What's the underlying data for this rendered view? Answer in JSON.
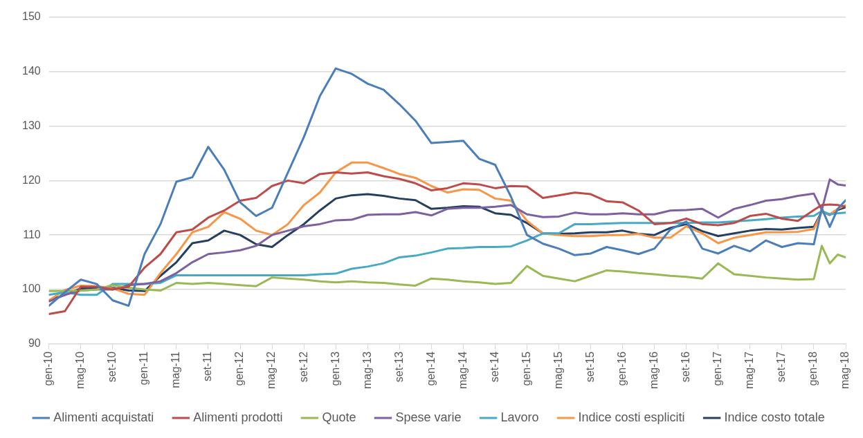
{
  "chart_data": {
    "type": "line",
    "x": [
      "2010-01",
      "2010-03",
      "2010-05",
      "2010-07",
      "2010-09",
      "2010-11",
      "2011-01",
      "2011-03",
      "2011-05",
      "2011-07",
      "2011-09",
      "2011-11",
      "2012-01",
      "2012-03",
      "2012-05",
      "2012-07",
      "2012-09",
      "2012-11",
      "2013-01",
      "2013-03",
      "2013-05",
      "2013-07",
      "2013-09",
      "2013-11",
      "2014-01",
      "2014-03",
      "2014-05",
      "2014-07",
      "2014-09",
      "2014-11",
      "2015-01",
      "2015-03",
      "2015-05",
      "2015-07",
      "2015-09",
      "2015-11",
      "2016-01",
      "2016-03",
      "2016-05",
      "2016-07",
      "2016-09",
      "2016-11",
      "2017-01",
      "2017-03",
      "2017-05",
      "2017-07",
      "2017-09",
      "2017-11",
      "2018-01",
      "2018-02",
      "2018-03",
      "2018-04",
      "2018-05"
    ],
    "xlim": [
      "2010-01",
      "2018-05"
    ],
    "xticks": [
      {
        "value": "2010-01",
        "label": "gen-10"
      },
      {
        "value": "2010-05",
        "label": "mag-10"
      },
      {
        "value": "2010-09",
        "label": "set-10"
      },
      {
        "value": "2011-01",
        "label": "gen-11"
      },
      {
        "value": "2011-05",
        "label": "mag-11"
      },
      {
        "value": "2011-09",
        "label": "set-11"
      },
      {
        "value": "2012-01",
        "label": "gen-12"
      },
      {
        "value": "2012-05",
        "label": "mag-12"
      },
      {
        "value": "2012-09",
        "label": "set-12"
      },
      {
        "value": "2013-01",
        "label": "gen-13"
      },
      {
        "value": "2013-05",
        "label": "mag-13"
      },
      {
        "value": "2013-09",
        "label": "set-13"
      },
      {
        "value": "2014-01",
        "label": "gen-14"
      },
      {
        "value": "2014-05",
        "label": "mag-14"
      },
      {
        "value": "2014-09",
        "label": "set-14"
      },
      {
        "value": "2015-01",
        "label": "gen-15"
      },
      {
        "value": "2015-05",
        "label": "mag-15"
      },
      {
        "value": "2015-09",
        "label": "set-15"
      },
      {
        "value": "2016-01",
        "label": "gen-16"
      },
      {
        "value": "2016-05",
        "label": "mag-16"
      },
      {
        "value": "2016-09",
        "label": "set-16"
      },
      {
        "value": "2017-01",
        "label": "gen-17"
      },
      {
        "value": "2017-05",
        "label": "mag-17"
      },
      {
        "value": "2017-09",
        "label": "set-17"
      },
      {
        "value": "2018-01",
        "label": "gen-18"
      },
      {
        "value": "2018-05",
        "label": "mag-18"
      }
    ],
    "ylim": [
      90,
      150
    ],
    "yticks": [
      90,
      100,
      110,
      120,
      130,
      140,
      150
    ],
    "grid": "y",
    "legend": "bottom",
    "marker": "none",
    "line_style": "solid",
    "series": [
      {
        "name": "Alimenti acquistati",
        "color": "#4a7ebb",
        "values": [
          97,
          99.5,
          101.8,
          101,
          98,
          97,
          106.5,
          112,
          119.8,
          120.6,
          126.2,
          122,
          116,
          113.5,
          115,
          121.5,
          128,
          135.5,
          140.6,
          139.6,
          137.8,
          136.7,
          134,
          131,
          126.9,
          127.1,
          127.3,
          124,
          122.9,
          117,
          110,
          108.4,
          107.5,
          106.3,
          106.6,
          107.8,
          107.2,
          106.5,
          107.5,
          111,
          112.5,
          107.5,
          106.6,
          108,
          107,
          109,
          107.8,
          108.5,
          108.3,
          114.9,
          111.5,
          114.8,
          116.4
        ]
      },
      {
        "name": "Alimenti prodotti",
        "color": "#be4b48",
        "values": [
          95.5,
          96,
          100.5,
          100.5,
          100,
          100.5,
          104,
          106.5,
          110.5,
          111,
          113.2,
          114.5,
          116.3,
          116.8,
          119,
          120,
          119.5,
          121.2,
          121.5,
          121.3,
          121.5,
          120.8,
          120.3,
          119.5,
          118.2,
          118.6,
          119.5,
          119.3,
          118.6,
          119,
          118.9,
          116.8,
          117.3,
          117.8,
          117.5,
          116.2,
          116,
          114.5,
          112,
          112.2,
          113,
          112,
          111.8,
          112.2,
          113.5,
          113.9,
          113,
          112.6,
          114.6,
          115.5,
          115.6,
          115.5,
          115.2
        ]
      },
      {
        "name": "Quote",
        "color": "#98b954",
        "values": [
          99.7,
          99.7,
          99.8,
          100,
          100.8,
          100.3,
          100,
          99.8,
          101.2,
          101,
          101.2,
          101,
          100.8,
          100.6,
          102.2,
          102,
          101.8,
          101.5,
          101.3,
          101.5,
          101.3,
          101.2,
          100.9,
          100.7,
          102,
          101.8,
          101.5,
          101.3,
          101,
          101.2,
          104.3,
          102.5,
          102,
          101.5,
          102.5,
          103.5,
          103.3,
          103,
          102.8,
          102.5,
          102.3,
          102,
          104.8,
          102.8,
          102.5,
          102.2,
          102,
          101.8,
          101.9,
          108,
          104.8,
          106.4,
          105.9
        ]
      },
      {
        "name": "Spese varie",
        "color": "#7d60a0",
        "values": [
          97.8,
          99,
          99.8,
          100,
          100,
          100.8,
          101,
          101.5,
          103,
          105,
          106.5,
          106.8,
          107.2,
          108,
          110,
          110.8,
          111.6,
          112,
          112.7,
          112.8,
          113.7,
          113.8,
          113.8,
          114.2,
          113.6,
          114.8,
          115,
          115,
          115.2,
          115.5,
          113.8,
          113.3,
          113.4,
          114.1,
          113.8,
          113.8,
          114,
          113.8,
          113.8,
          114.5,
          114.6,
          114.8,
          113.2,
          114.8,
          115.5,
          116.3,
          116.6,
          117.2,
          117.6,
          114.6,
          120.2,
          119.3,
          119.1
        ]
      },
      {
        "name": "Lavoro",
        "color": "#46aac5",
        "values": [
          99,
          99.5,
          99,
          99,
          101,
          101,
          101,
          101.2,
          102.6,
          102.6,
          102.6,
          102.6,
          102.6,
          102.6,
          102.6,
          102.6,
          102.6,
          102.8,
          102.9,
          103.8,
          104.2,
          104.8,
          105.9,
          106.2,
          106.8,
          107.5,
          107.6,
          107.8,
          107.8,
          107.9,
          109,
          110.3,
          110.3,
          112,
          112,
          112.1,
          112.2,
          112.2,
          112.2,
          112.2,
          112.2,
          112.3,
          112.3,
          112.5,
          112.7,
          112.9,
          113.2,
          113.4,
          113.5,
          114.4,
          113.8,
          114,
          114.1
        ]
      },
      {
        "name": "Indice costi espliciti",
        "color": "#f79646",
        "values": [
          98,
          99.9,
          100.7,
          100.6,
          100.2,
          99.2,
          99,
          103,
          106.5,
          110.5,
          111.5,
          114.2,
          113,
          110.8,
          110,
          112,
          115.5,
          117.8,
          121.5,
          123.3,
          123.3,
          122.3,
          121.2,
          120.5,
          119,
          117.8,
          118.4,
          118.3,
          116.7,
          116.3,
          112.6,
          110.3,
          110,
          109.8,
          109.8,
          110,
          110,
          110.2,
          109.5,
          109.5,
          111.6,
          110.3,
          108.5,
          109.5,
          110,
          110.5,
          110.5,
          110.6,
          111.1,
          114.2,
          113.8,
          114.8,
          115.5
        ]
      },
      {
        "name": "Indice costo totale",
        "color": "#243f60",
        "values": [
          98,
          99,
          100.2,
          100.2,
          100.3,
          99.8,
          99.7,
          102.5,
          105,
          108.5,
          109,
          110.8,
          110,
          108.3,
          107.8,
          110,
          112,
          114.5,
          116.7,
          117.3,
          117.5,
          117.2,
          116.7,
          116.4,
          114.8,
          115,
          115.3,
          115.2,
          114,
          113.7,
          112.2,
          110.3,
          110.2,
          110.3,
          110.5,
          110.5,
          110.8,
          110.2,
          110,
          111.3,
          112,
          110.7,
          109.8,
          110.3,
          110.8,
          111.1,
          111,
          111.3,
          111.5,
          114.3,
          113.7,
          114.6,
          115.1
        ]
      }
    ]
  }
}
